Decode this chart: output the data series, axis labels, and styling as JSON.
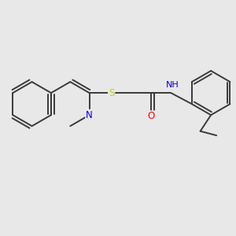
{
  "bg_color": "#e8e8e8",
  "bond_color": "#3a3a3a",
  "bond_width": 1.4,
  "atom_colors": {
    "N": "#0000ee",
    "S": "#cccc00",
    "O": "#ff0000",
    "H": "#009090",
    "C": "#3a3a3a"
  },
  "figsize": [
    3.0,
    3.0
  ],
  "dpi": 100
}
